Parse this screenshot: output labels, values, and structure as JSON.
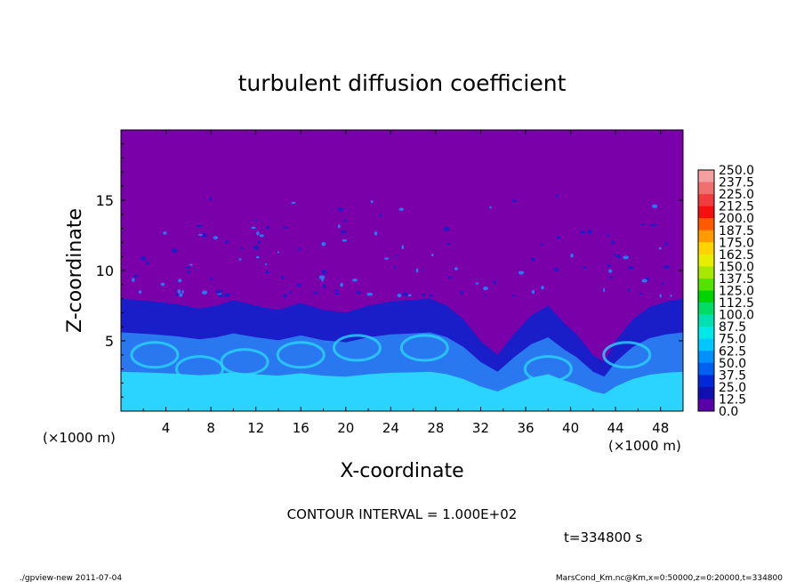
{
  "chart_data": {
    "type": "heatmap",
    "title": "turbulent diffusion coefficient",
    "xlabel": "X-coordinate",
    "ylabel": "Z-coordinate",
    "x_unit": "(×1000 m)",
    "y_unit": "(×1000 m)",
    "xlim": [
      0,
      50
    ],
    "ylim": [
      0,
      20
    ],
    "x_ticks": [
      "4",
      "8",
      "12",
      "16",
      "20",
      "24",
      "28",
      "32",
      "36",
      "40",
      "44",
      "48"
    ],
    "y_ticks": [
      "5",
      "10",
      "15"
    ],
    "colorbar": {
      "levels": [
        "250.0",
        "237.5",
        "225.0",
        "212.5",
        "200.0",
        "187.5",
        "175.0",
        "162.5",
        "150.0",
        "137.5",
        "125.0",
        "112.5",
        "100.0",
        "87.5",
        "75.0",
        "62.5",
        "50.0",
        "37.5",
        "25.0",
        "12.5",
        "0.0"
      ],
      "colors": [
        "#f4a0a0",
        "#f07070",
        "#f03c3c",
        "#f51010",
        "#ff5a00",
        "#ff9a00",
        "#ffd400",
        "#e6ef00",
        "#a8e800",
        "#54e200",
        "#00d400",
        "#00dc64",
        "#00e0b0",
        "#00e8e8",
        "#00c8ff",
        "#0090ff",
        "#0060f0",
        "#0028d8",
        "#1010b0",
        "#5a00a8"
      ]
    },
    "background_color": "#7a00aa",
    "field_colors": {
      "low": "#1a1ec8",
      "mid": "#2a78f0",
      "high": "#2ad4ff"
    },
    "contour_interval": "CONTOUR INTERVAL = 1.000E+02",
    "time_label": "t=334800 s"
  },
  "footer": {
    "left": "./gpview-new 2011-07-04",
    "right": "MarsCond_Km.nc@Km,x=0:50000,z=0:20000,t=334800"
  }
}
